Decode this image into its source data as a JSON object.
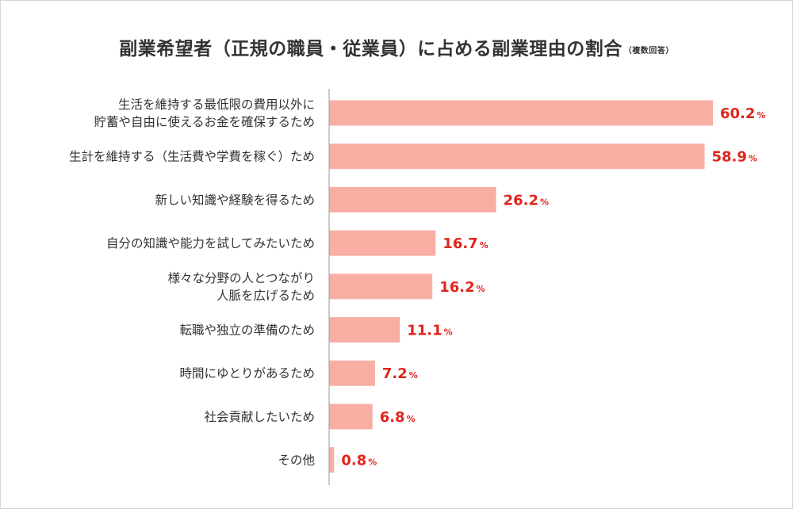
{
  "chart_data": {
    "type": "bar",
    "orientation": "horizontal",
    "title": "副業希望者（正規の職員・従業員）に占める副業理由の割合",
    "title_note": "（複数回答）",
    "categories": [
      [
        "生活を維持する最低限の費用以外に",
        "貯蓄や自由に使えるお金を確保するため"
      ],
      [
        "生計を維持する（生活費や学費を稼ぐ）ため"
      ],
      [
        "新しい知識や経験を得るため"
      ],
      [
        "自分の知識や能力を試してみたいため"
      ],
      [
        "様々な分野の人とつながり",
        "人脈を広げるため"
      ],
      [
        "転職や独立の準備のため"
      ],
      [
        "時間にゆとりがあるため"
      ],
      [
        "社会貢献したいため"
      ],
      [
        "その他"
      ]
    ],
    "values": [
      60.2,
      58.9,
      26.2,
      16.7,
      16.2,
      11.1,
      7.2,
      6.8,
      0.8
    ],
    "value_labels": [
      "60.2",
      "58.9",
      "26.2",
      "16.7",
      "16.2",
      "11.1",
      "7.2",
      "6.8",
      "0.8"
    ],
    "unit": "%",
    "xlim": [
      0,
      65
    ],
    "grid": false,
    "legend": "none",
    "colors": {
      "bar": "#f8aea3",
      "value_text": "#e0251b",
      "axis": "#999999",
      "text": "#333333"
    }
  }
}
